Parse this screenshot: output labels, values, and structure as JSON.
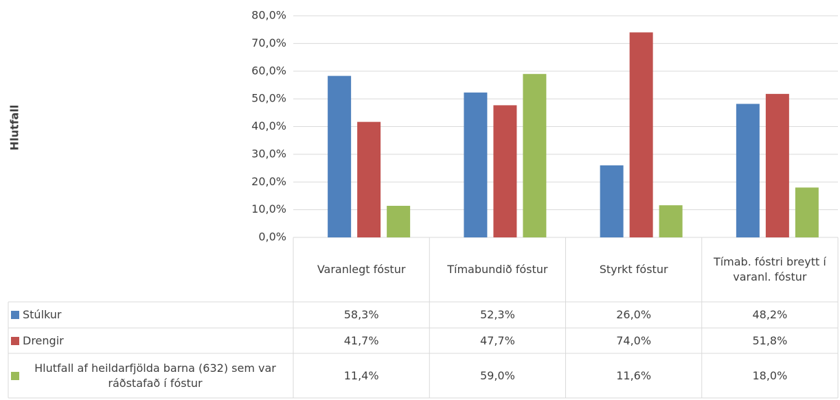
{
  "chart_data": {
    "type": "bar",
    "y_label": "Hlutfall",
    "categories": [
      "Varanlegt fóstur",
      "Tímabundið fóstur",
      "Styrkt fóstur",
      "Tímab. fóstri breytt í varanl. fóstur"
    ],
    "series": [
      {
        "name": "Stúlkur",
        "color": "#4f81bd",
        "values": [
          58.3,
          52.3,
          26.0,
          48.2
        ],
        "value_labels": [
          "58,3%",
          "52,3%",
          "26,0%",
          "48,2%"
        ]
      },
      {
        "name": "Drengir",
        "color": "#c0504d",
        "values": [
          41.7,
          47.7,
          74.0,
          51.8
        ],
        "value_labels": [
          "41,7%",
          "47,7%",
          "74,0%",
          "51,8%"
        ]
      },
      {
        "name": "Hlutfall af heildarfjölda barna (632) sem var ráðstafað í fóstur",
        "color": "#9bbb59",
        "values": [
          11.4,
          59.0,
          11.6,
          18.0
        ],
        "value_labels": [
          "11,4%",
          "59,0%",
          "11,6%",
          "18,0%"
        ]
      }
    ],
    "ylim": [
      0,
      80
    ],
    "yticks": [
      {
        "value": 0,
        "label": "0,0%"
      },
      {
        "value": 10,
        "label": "10,0%"
      },
      {
        "value": 20,
        "label": "20,0%"
      },
      {
        "value": 30,
        "label": "30,0%"
      },
      {
        "value": 40,
        "label": "40,0%"
      },
      {
        "value": 50,
        "label": "50,0%"
      },
      {
        "value": 60,
        "label": "60,0%"
      },
      {
        "value": 70,
        "label": "70,0%"
      },
      {
        "value": 80,
        "label": "80,0%"
      }
    ],
    "grid": true
  }
}
